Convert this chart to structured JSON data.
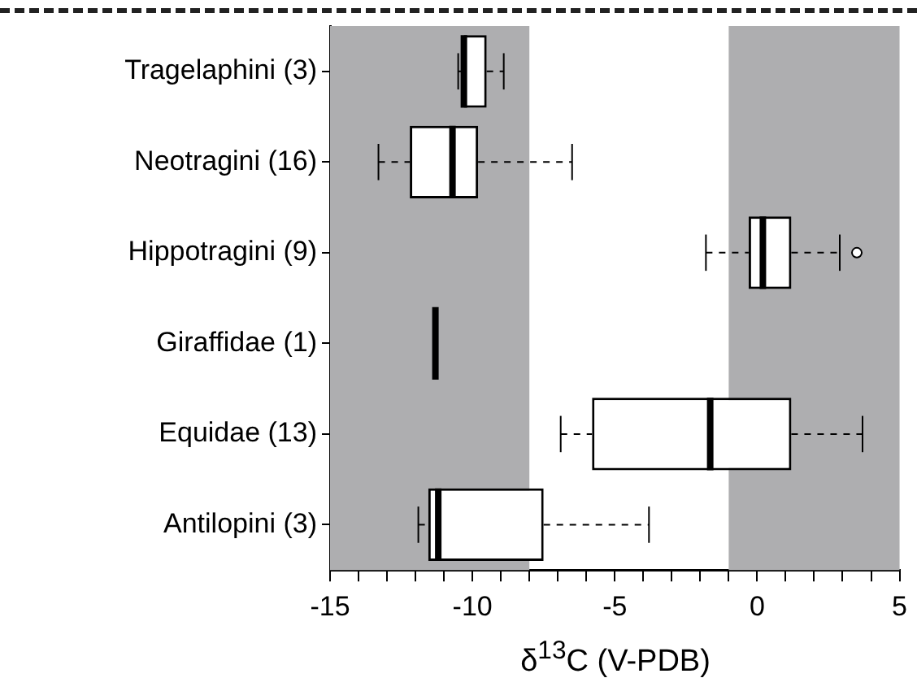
{
  "chart_data": {
    "type": "box",
    "orientation": "horizontal",
    "xlabel": "δ$^{13}$C (V-PDB)",
    "categories": [
      "Tragelaphini (3)",
      "Neotragini (16)",
      "Hippotragini (9)",
      "Giraffidae (1)",
      "Equidae (13)",
      "Antilopini (3)"
    ],
    "boxes": [
      {
        "low": -10.5,
        "q1": -10.3,
        "median": -10.3,
        "q3": -9.5,
        "high": -8.9
      },
      {
        "low": -13.3,
        "q1": -12.2,
        "median": -10.7,
        "q3": -9.8,
        "high": -6.5
      },
      {
        "low": -1.8,
        "q1": -0.3,
        "median": 0.2,
        "q3": 1.2,
        "high": 2.9,
        "outliers": [
          3.5
        ]
      },
      {
        "low": -11.3,
        "q1": -11.3,
        "median": -11.3,
        "q3": -11.3,
        "high": -11.3
      },
      {
        "low": -6.9,
        "q1": -5.8,
        "median": -1.65,
        "q3": 1.2,
        "high": 3.7
      },
      {
        "low": -11.9,
        "q1": -11.55,
        "median": -11.2,
        "q3": -7.5,
        "high": -3.8
      }
    ],
    "xlim": [
      -15,
      5
    ],
    "xticks": [
      -15,
      {
        "value": -14,
        "label": null
      },
      {
        "value": -13,
        "label": null
      },
      {
        "value": -12,
        "label": null
      },
      {
        "value": -11,
        "label": null
      },
      -10,
      {
        "value": -9,
        "label": null
      },
      {
        "value": -8,
        "label": null
      },
      {
        "value": -7,
        "label": null
      },
      {
        "value": -6,
        "label": null
      },
      -5,
      {
        "value": -4,
        "label": null
      },
      {
        "value": -3,
        "label": null
      },
      {
        "value": -2,
        "label": null
      },
      {
        "value": -1,
        "label": null
      },
      0,
      {
        "value": 1,
        "label": null
      },
      {
        "value": 2,
        "label": null
      },
      {
        "value": 3,
        "label": null
      },
      {
        "value": 4,
        "label": null
      },
      5
    ],
    "bands": [
      {
        "axis": "x",
        "from": -15,
        "to": -8,
        "color": "#aeaeb0"
      },
      {
        "axis": "x",
        "from": -1,
        "to": 5,
        "color": "#aeaeb0"
      }
    ]
  }
}
